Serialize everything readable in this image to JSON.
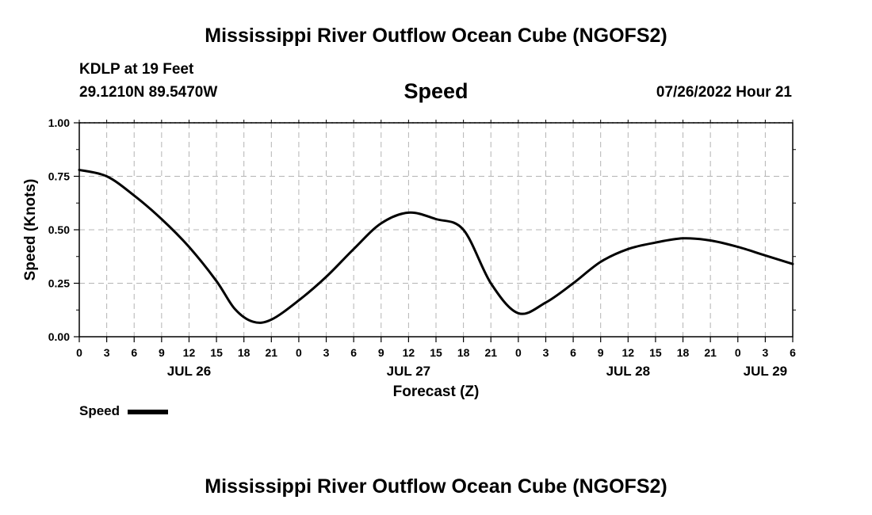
{
  "header": {
    "title": "Mississippi River Outflow Ocean Cube (NGOFS2)",
    "station": "KDLP at 19 Feet",
    "coords": "29.1210N  89.5470W",
    "variable": "Speed",
    "datetime": "07/26/2022 Hour 21"
  },
  "footer": {
    "title": "Mississippi River Outflow Ocean Cube (NGOFS2)"
  },
  "legend": {
    "label": "Speed"
  },
  "chart_data": {
    "type": "line",
    "title": "Speed",
    "xlabel": "Forecast (Z)",
    "ylabel": "Speed (Knots)",
    "xlim": [
      0,
      78
    ],
    "ylim": [
      0,
      1
    ],
    "yticks": [
      "0.00",
      "0.25",
      "0.50",
      "0.75",
      "1.00"
    ],
    "xticks": [
      "0",
      "3",
      "6",
      "9",
      "12",
      "15",
      "18",
      "21",
      "0",
      "3",
      "6",
      "9",
      "12",
      "15",
      "18",
      "21",
      "0",
      "3",
      "6",
      "9",
      "12",
      "15",
      "18",
      "21",
      "0",
      "3",
      "6"
    ],
    "day_labels": [
      {
        "label": "JUL 26",
        "hour": 12
      },
      {
        "label": "JUL 27",
        "hour": 36
      },
      {
        "label": "JUL 28",
        "hour": 60
      },
      {
        "label": "JUL 29",
        "hour": 75
      }
    ],
    "grid": true,
    "series": [
      {
        "name": "Speed",
        "x": [
          0,
          3,
          6,
          9,
          12,
          15,
          17,
          19,
          21,
          24,
          27,
          30,
          33,
          36,
          39,
          42,
          45,
          48,
          51,
          54,
          57,
          60,
          63,
          66,
          69,
          72,
          75,
          78
        ],
        "y": [
          0.78,
          0.75,
          0.66,
          0.55,
          0.42,
          0.26,
          0.13,
          0.07,
          0.08,
          0.17,
          0.28,
          0.41,
          0.53,
          0.58,
          0.55,
          0.5,
          0.25,
          0.11,
          0.16,
          0.25,
          0.35,
          0.41,
          0.44,
          0.46,
          0.45,
          0.42,
          0.38,
          0.34
        ]
      }
    ]
  }
}
